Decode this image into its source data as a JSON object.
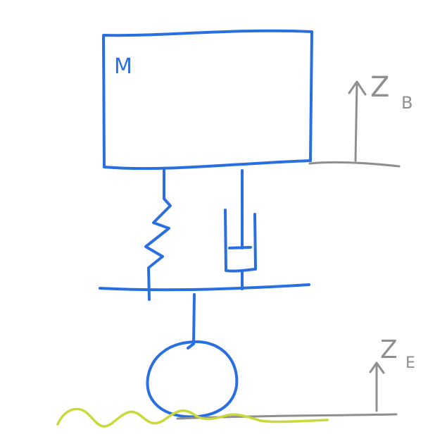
{
  "diagram": {
    "mass_label": "M",
    "body_displacement": {
      "symbol": "Z",
      "subscript": "B"
    },
    "road_displacement": {
      "symbol": "Z",
      "subscript": "E"
    }
  },
  "colors": {
    "system": "#2a6fe0",
    "reference": "#8f8f8f",
    "road": "#c9d93a",
    "background": "#ffffff"
  }
}
